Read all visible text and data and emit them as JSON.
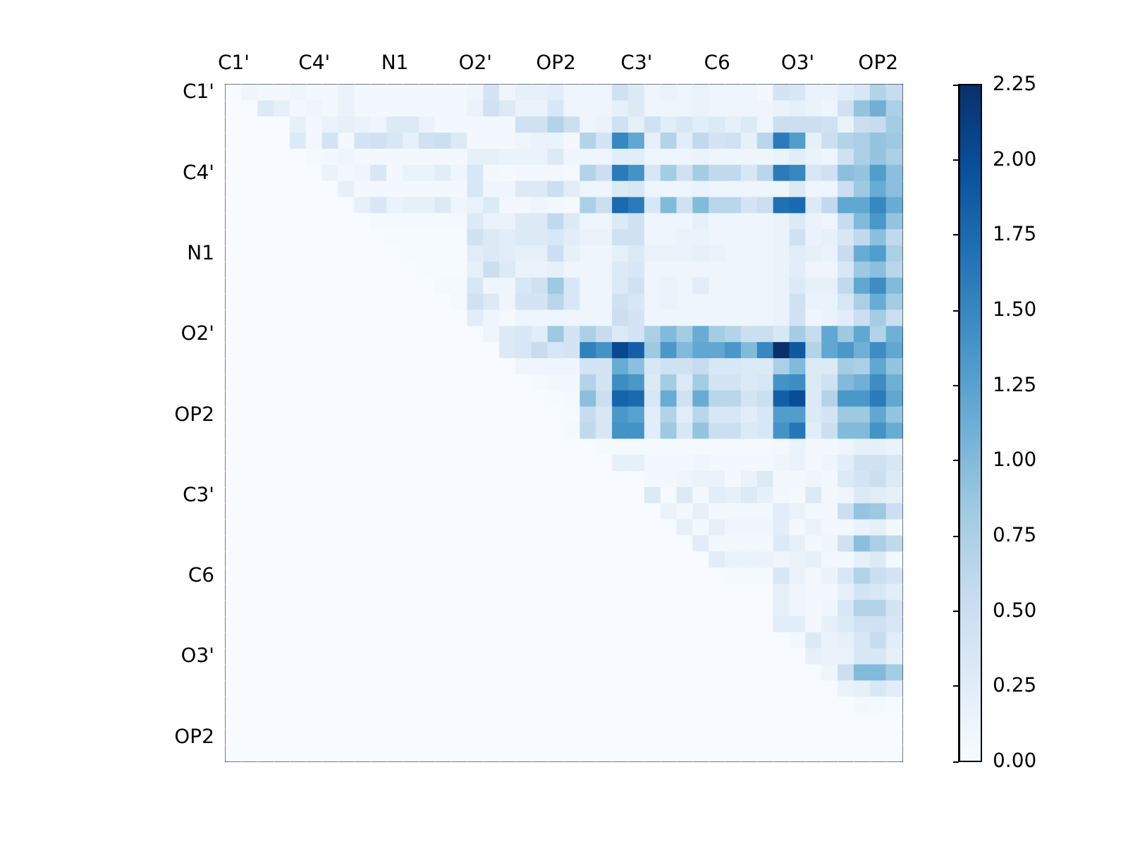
{
  "chart_data": {
    "type": "heatmap",
    "categories": [
      "C1'",
      null,
      null,
      null,
      null,
      "C4'",
      null,
      null,
      null,
      null,
      "N1",
      null,
      null,
      null,
      null,
      "O2'",
      null,
      null,
      null,
      null,
      "OP2",
      null,
      null,
      null,
      null,
      "C3'",
      null,
      null,
      null,
      null,
      "C6",
      null,
      null,
      null,
      null,
      "O3'",
      null,
      null,
      null,
      null,
      "OP2",
      null
    ],
    "y_categories": [
      "C1'",
      null,
      null,
      null,
      null,
      "C4'",
      null,
      null,
      null,
      null,
      "N1",
      null,
      null,
      null,
      null,
      "O2'",
      null,
      null,
      null,
      null,
      "OP2",
      null,
      null,
      null,
      null,
      "C3'",
      null,
      null,
      null,
      null,
      "C6",
      null,
      null,
      null,
      null,
      "O3'",
      null,
      null,
      null,
      null,
      "OP2",
      null
    ],
    "cells": [
      [
        0,
        0.1,
        0.05,
        0.05,
        0.1,
        0.05,
        0.05,
        0.15,
        0.05,
        0.05,
        0.05,
        0.05,
        0.05,
        0.05,
        0.05,
        0.1,
        0.4,
        0.1,
        0.2,
        0.2,
        0.25,
        0.1,
        0.1,
        0.1,
        0.45,
        0.3,
        0.1,
        0.15,
        0.1,
        0.15,
        0.1,
        0.1,
        0.1,
        0.05,
        0.4,
        0.35,
        0.15,
        0.15,
        0.25,
        0.35,
        0.7,
        0.55
      ],
      [
        0,
        0,
        0.3,
        0.2,
        0.05,
        0.1,
        0.05,
        0.15,
        0.05,
        0.05,
        0.05,
        0.05,
        0.05,
        0.05,
        0.05,
        0.15,
        0.45,
        0.3,
        0.15,
        0.15,
        0.35,
        0.1,
        0.1,
        0.1,
        0.2,
        0.3,
        0.1,
        0.1,
        0.1,
        0.15,
        0.1,
        0.1,
        0.1,
        0.1,
        0.15,
        0.2,
        0.15,
        0.1,
        0.45,
        0.9,
        1.1,
        0.75
      ],
      [
        0,
        0,
        0,
        0,
        0.2,
        0.05,
        0.15,
        0.2,
        0.15,
        0.1,
        0.3,
        0.3,
        0.15,
        0.05,
        0.05,
        0.05,
        0.05,
        0.05,
        0.45,
        0.45,
        0.7,
        0.5,
        0.1,
        0.15,
        0.45,
        0.2,
        0.45,
        0.25,
        0.35,
        0.25,
        0.3,
        0.2,
        0.3,
        0.1,
        0.5,
        0.5,
        0.5,
        0.45,
        0.15,
        0.5,
        0.55,
        0.8
      ],
      [
        0,
        0,
        0,
        0,
        0.3,
        0.05,
        0.4,
        0.05,
        0.4,
        0.45,
        0.35,
        0.2,
        0.45,
        0.5,
        0.3,
        0.05,
        0.05,
        0.05,
        0.1,
        0.15,
        0.15,
        0.05,
        0.7,
        0.4,
        1.5,
        1.2,
        0.2,
        0.7,
        0.25,
        0.6,
        0.4,
        0.45,
        0.2,
        0.65,
        1.6,
        1.3,
        0.2,
        0.5,
        0.7,
        0.75,
        0.9,
        0.85
      ],
      [
        0,
        0,
        0,
        0,
        0,
        0.03,
        0.05,
        0.1,
        0.05,
        0.05,
        0.05,
        0.05,
        0.05,
        0.05,
        0.05,
        0.2,
        0.2,
        0.15,
        0.15,
        0.15,
        0.3,
        0.1,
        0.1,
        0.1,
        0.25,
        0.25,
        0.1,
        0.1,
        0.1,
        0.15,
        0.1,
        0.1,
        0.1,
        0.1,
        0.15,
        0.25,
        0.15,
        0.1,
        0.45,
        0.75,
        0.9,
        0.75
      ],
      [
        0,
        0,
        0,
        0,
        0,
        0,
        0.15,
        0.05,
        0.1,
        0.35,
        0.05,
        0.15,
        0.15,
        0.25,
        0.1,
        0.35,
        0.05,
        0.03,
        0.05,
        0.05,
        0.05,
        0.03,
        0.7,
        0.5,
        1.6,
        1.4,
        0.35,
        0.8,
        0.45,
        0.8,
        0.6,
        0.6,
        0.35,
        0.65,
        1.6,
        1.5,
        0.35,
        0.45,
        0.95,
        0.9,
        1.3,
        0.95
      ],
      [
        0,
        0,
        0,
        0,
        0,
        0,
        0,
        0.2,
        0.05,
        0.05,
        0.05,
        0.05,
        0.05,
        0.05,
        0.05,
        0.35,
        0.1,
        0.1,
        0.3,
        0.3,
        0.5,
        0.25,
        0.1,
        0.1,
        0.3,
        0.35,
        0.1,
        0.1,
        0.1,
        0.15,
        0.1,
        0.1,
        0.1,
        0.1,
        0.1,
        0.3,
        0.1,
        0.1,
        0.5,
        0.85,
        1.15,
        0.95
      ],
      [
        0,
        0,
        0,
        0,
        0,
        0,
        0,
        0,
        0.2,
        0.35,
        0.15,
        0.2,
        0.2,
        0.3,
        0.1,
        0.15,
        0.3,
        0.05,
        0.05,
        0.1,
        0.05,
        0.03,
        0.75,
        0.5,
        1.75,
        1.6,
        0.35,
        1,
        0.45,
        1,
        0.65,
        0.65,
        0.4,
        0.5,
        1.7,
        1.75,
        0.3,
        0.6,
        1.2,
        1.2,
        1.5,
        1.15
      ],
      [
        0,
        0,
        0,
        0,
        0,
        0,
        0,
        0,
        0,
        0.03,
        0.03,
        0.03,
        0.03,
        0.03,
        0.03,
        0.3,
        0.15,
        0.15,
        0.3,
        0.3,
        0.6,
        0.3,
        0.1,
        0.1,
        0.3,
        0.45,
        0.1,
        0.1,
        0.1,
        0.2,
        0.1,
        0.1,
        0.1,
        0.1,
        0.15,
        0.3,
        0.15,
        0.1,
        0.55,
        1,
        1.35,
        0.9
      ],
      [
        0,
        0,
        0,
        0,
        0,
        0,
        0,
        0,
        0,
        0,
        0.02,
        0.02,
        0.02,
        0.02,
        0.02,
        0.45,
        0.3,
        0.25,
        0.3,
        0.3,
        0.35,
        0.25,
        0.15,
        0.15,
        0.45,
        0.45,
        0.1,
        0.1,
        0.15,
        0.15,
        0.1,
        0.1,
        0.1,
        0.1,
        0.15,
        0.45,
        0.15,
        0.2,
        0.35,
        0.6,
        0.95,
        0.6
      ],
      [
        0,
        0,
        0,
        0,
        0,
        0,
        0,
        0,
        0,
        0,
        0,
        0.02,
        0.02,
        0.02,
        0.02,
        0.25,
        0.3,
        0.25,
        0.2,
        0.2,
        0.5,
        0.2,
        0.1,
        0.1,
        0.2,
        0.3,
        0.15,
        0.15,
        0.15,
        0.2,
        0.15,
        0.1,
        0.1,
        0.1,
        0.15,
        0.25,
        0.2,
        0.15,
        0.55,
        1.15,
        1.3,
        0.75
      ],
      [
        0,
        0,
        0,
        0,
        0,
        0,
        0,
        0,
        0,
        0,
        0,
        0,
        0.02,
        0.02,
        0.02,
        0.2,
        0.5,
        0.3,
        0.15,
        0.15,
        0.2,
        0.1,
        0.1,
        0.1,
        0.3,
        0.35,
        0.1,
        0.1,
        0.1,
        0.1,
        0.1,
        0.1,
        0.1,
        0.1,
        0.15,
        0.25,
        0.1,
        0.1,
        0.35,
        0.85,
        0.95,
        0.65
      ],
      [
        0,
        0,
        0,
        0,
        0,
        0,
        0,
        0,
        0,
        0,
        0,
        0,
        0,
        0.03,
        0.03,
        0.35,
        0.1,
        0.1,
        0.35,
        0.45,
        0.85,
        0.35,
        0.1,
        0.1,
        0.3,
        0.45,
        0.1,
        0.15,
        0.1,
        0.25,
        0.1,
        0.1,
        0.1,
        0.1,
        0.15,
        0.3,
        0.2,
        0.2,
        0.6,
        1.2,
        1.45,
        1
      ],
      [
        0,
        0,
        0,
        0,
        0,
        0,
        0,
        0,
        0,
        0,
        0,
        0,
        0,
        0,
        0.03,
        0.45,
        0.3,
        0.1,
        0.4,
        0.4,
        0.65,
        0.35,
        0.1,
        0.1,
        0.45,
        0.35,
        0.1,
        0.15,
        0.1,
        0.1,
        0.1,
        0.1,
        0.1,
        0.1,
        0.15,
        0.45,
        0.15,
        0.15,
        0.35,
        0.75,
        1.15,
        0.8
      ],
      [
        0,
        0,
        0,
        0,
        0,
        0,
        0,
        0,
        0,
        0,
        0,
        0,
        0,
        0,
        0,
        0.25,
        0.1,
        0.03,
        0.1,
        0.1,
        0.1,
        0.1,
        0.1,
        0.1,
        0.5,
        0.4,
        0.1,
        0.1,
        0.1,
        0.1,
        0.1,
        0.1,
        0.1,
        0.1,
        0.15,
        0.45,
        0.1,
        0.15,
        0.25,
        0.5,
        0.8,
        0.5
      ],
      [
        0,
        0,
        0,
        0,
        0,
        0,
        0,
        0,
        0,
        0,
        0,
        0,
        0,
        0,
        0,
        0,
        0.1,
        0.3,
        0.35,
        0.25,
        0.85,
        0.4,
        0.75,
        0.55,
        0.3,
        0.4,
        0.75,
        1,
        0.8,
        1.15,
        0.8,
        0.7,
        0.5,
        0.5,
        0.35,
        0.8,
        0.55,
        1.2,
        0.85,
        1.2,
        0.7,
        1.1
      ],
      [
        0,
        0,
        0,
        0,
        0,
        0,
        0,
        0,
        0,
        0,
        0,
        0,
        0,
        0,
        0,
        0,
        0,
        0.3,
        0.35,
        0.55,
        0.35,
        0.4,
        1.55,
        1.4,
        2.05,
        1.85,
        0.85,
        1.35,
        1,
        1.2,
        1.2,
        1.35,
        1,
        1.5,
        2.25,
        1.9,
        0.7,
        1.2,
        1.35,
        1.1,
        1.45,
        1.2
      ],
      [
        0,
        0,
        0,
        0,
        0,
        0,
        0,
        0,
        0,
        0,
        0,
        0,
        0,
        0,
        0,
        0,
        0,
        0,
        0.1,
        0.1,
        0.1,
        0.1,
        0.4,
        0.4,
        1.15,
        0.95,
        0.35,
        0.45,
        0.45,
        0.55,
        0.35,
        0.35,
        0.3,
        0.3,
        0.75,
        1,
        0.3,
        0.3,
        0.8,
        0.75,
        1.2,
        0.9
      ],
      [
        0,
        0,
        0,
        0,
        0,
        0,
        0,
        0,
        0,
        0,
        0,
        0,
        0,
        0,
        0,
        0,
        0,
        0,
        0,
        0.03,
        0.05,
        0.05,
        0.7,
        0.4,
        1.45,
        1.35,
        0.3,
        0.8,
        0.3,
        0.8,
        0.4,
        0.4,
        0.3,
        0.35,
        1.4,
        1.45,
        0.3,
        0.45,
        1,
        1.1,
        1.45,
        1.1
      ],
      [
        0,
        0,
        0,
        0,
        0,
        0,
        0,
        0,
        0,
        0,
        0,
        0,
        0,
        0,
        0,
        0,
        0,
        0,
        0,
        0,
        0.02,
        0.03,
        0.95,
        0.5,
        1.8,
        1.75,
        0.35,
        1.15,
        0.45,
        1.15,
        0.65,
        0.65,
        0.4,
        0.5,
        1.85,
        2,
        0.3,
        0.7,
        1.35,
        1.35,
        1.6,
        1.2
      ],
      [
        0,
        0,
        0,
        0,
        0,
        0,
        0,
        0,
        0,
        0,
        0,
        0,
        0,
        0,
        0,
        0,
        0,
        0,
        0,
        0,
        0,
        0.02,
        0.55,
        0.35,
        1.35,
        1.25,
        0.25,
        0.7,
        0.25,
        0.65,
        0.35,
        0.35,
        0.25,
        0.35,
        1.3,
        1.3,
        0.3,
        0.4,
        0.85,
        0.85,
        1.2,
        0.9
      ],
      [
        0,
        0,
        0,
        0,
        0,
        0,
        0,
        0,
        0,
        0,
        0,
        0,
        0,
        0,
        0,
        0,
        0,
        0,
        0,
        0,
        0,
        0.03,
        0.6,
        0.35,
        1.4,
        1.4,
        0.25,
        0.85,
        0.35,
        0.9,
        0.5,
        0.5,
        0.3,
        0.35,
        1.4,
        1.65,
        0.25,
        0.5,
        1,
        1,
        1.4,
        1.15
      ],
      [
        0,
        0,
        0,
        0,
        0,
        0,
        0,
        0,
        0,
        0,
        0,
        0,
        0,
        0,
        0,
        0,
        0,
        0,
        0,
        0,
        0,
        0,
        0,
        0.03,
        0.03,
        0.03,
        0.03,
        0.03,
        0.03,
        0.03,
        0.03,
        0.03,
        0.03,
        0.03,
        0.05,
        0.15,
        0.05,
        0.05,
        0.1,
        0.2,
        0.2,
        0.15
      ],
      [
        0,
        0,
        0,
        0,
        0,
        0,
        0,
        0,
        0,
        0,
        0,
        0,
        0,
        0,
        0,
        0,
        0,
        0,
        0,
        0,
        0,
        0,
        0,
        0,
        0.2,
        0.2,
        0.05,
        0.05,
        0.05,
        0.1,
        0.05,
        0.05,
        0.05,
        0.05,
        0.1,
        0.15,
        0.05,
        0.1,
        0.25,
        0.45,
        0.45,
        0.35
      ],
      [
        0,
        0,
        0,
        0,
        0,
        0,
        0,
        0,
        0,
        0,
        0,
        0,
        0,
        0,
        0,
        0,
        0,
        0,
        0,
        0,
        0,
        0,
        0,
        0,
        0,
        0,
        0.05,
        0.05,
        0.1,
        0.15,
        0.15,
        0.05,
        0.15,
        0.3,
        0.05,
        0.05,
        0.1,
        0.05,
        0.3,
        0.4,
        0.5,
        0.3
      ],
      [
        0,
        0,
        0,
        0,
        0,
        0,
        0,
        0,
        0,
        0,
        0,
        0,
        0,
        0,
        0,
        0,
        0,
        0,
        0,
        0,
        0,
        0,
        0,
        0,
        0,
        0,
        0.3,
        0.02,
        0.3,
        0.05,
        0.25,
        0.2,
        0.3,
        0.2,
        0.05,
        0.03,
        0.3,
        0.05,
        0.1,
        0.3,
        0.25,
        0.2
      ],
      [
        0,
        0,
        0,
        0,
        0,
        0,
        0,
        0,
        0,
        0,
        0,
        0,
        0,
        0,
        0,
        0,
        0,
        0,
        0,
        0,
        0,
        0,
        0,
        0,
        0,
        0,
        0,
        0.15,
        0.05,
        0.2,
        0.05,
        0.05,
        0.05,
        0.05,
        0.25,
        0.15,
        0.05,
        0.05,
        0.5,
        0.9,
        0.85,
        0.5
      ],
      [
        0,
        0,
        0,
        0,
        0,
        0,
        0,
        0,
        0,
        0,
        0,
        0,
        0,
        0,
        0,
        0,
        0,
        0,
        0,
        0,
        0,
        0,
        0,
        0,
        0,
        0,
        0,
        0,
        0.2,
        0.05,
        0.2,
        0.1,
        0.1,
        0.1,
        0.25,
        0.05,
        0.15,
        0.05,
        0.05,
        0.15,
        0.2,
        0.05
      ],
      [
        0,
        0,
        0,
        0,
        0,
        0,
        0,
        0,
        0,
        0,
        0,
        0,
        0,
        0,
        0,
        0,
        0,
        0,
        0,
        0,
        0,
        0,
        0,
        0,
        0,
        0,
        0,
        0,
        0,
        0.25,
        0.05,
        0.05,
        0.05,
        0.05,
        0.3,
        0.2,
        0.05,
        0.1,
        0.45,
        0.95,
        0.75,
        0.6
      ],
      [
        0,
        0,
        0,
        0,
        0,
        0,
        0,
        0,
        0,
        0,
        0,
        0,
        0,
        0,
        0,
        0,
        0,
        0,
        0,
        0,
        0,
        0,
        0,
        0,
        0,
        0,
        0,
        0,
        0,
        0,
        0.25,
        0.15,
        0.15,
        0.15,
        0.1,
        0.15,
        0.2,
        0.05,
        0.05,
        0.2,
        0.3,
        0.05
      ],
      [
        0,
        0,
        0,
        0,
        0,
        0,
        0,
        0,
        0,
        0,
        0,
        0,
        0,
        0,
        0,
        0,
        0,
        0,
        0,
        0,
        0,
        0,
        0,
        0,
        0,
        0,
        0,
        0,
        0,
        0,
        0,
        0.03,
        0.03,
        0.03,
        0.35,
        0.15,
        0.05,
        0.15,
        0.35,
        0.7,
        0.5,
        0.4
      ],
      [
        0,
        0,
        0,
        0,
        0,
        0,
        0,
        0,
        0,
        0,
        0,
        0,
        0,
        0,
        0,
        0,
        0,
        0,
        0,
        0,
        0,
        0,
        0,
        0,
        0,
        0,
        0,
        0,
        0,
        0,
        0,
        0,
        0,
        0,
        0.2,
        0.1,
        0.05,
        0.05,
        0.2,
        0.4,
        0.35,
        0.25
      ],
      [
        0,
        0,
        0,
        0,
        0,
        0,
        0,
        0,
        0,
        0,
        0,
        0,
        0,
        0,
        0,
        0,
        0,
        0,
        0,
        0,
        0,
        0,
        0,
        0,
        0,
        0,
        0,
        0,
        0,
        0,
        0,
        0,
        0,
        0,
        0.2,
        0.1,
        0.05,
        0.1,
        0.35,
        0.7,
        0.7,
        0.4
      ],
      [
        0,
        0,
        0,
        0,
        0,
        0,
        0,
        0,
        0,
        0,
        0,
        0,
        0,
        0,
        0,
        0,
        0,
        0,
        0,
        0,
        0,
        0,
        0,
        0,
        0,
        0,
        0,
        0,
        0,
        0,
        0,
        0,
        0,
        0,
        0.25,
        0.25,
        0.05,
        0.2,
        0.3,
        0.45,
        0.45,
        0.35
      ],
      [
        0,
        0,
        0,
        0,
        0,
        0,
        0,
        0,
        0,
        0,
        0,
        0,
        0,
        0,
        0,
        0,
        0,
        0,
        0,
        0,
        0,
        0,
        0,
        0,
        0,
        0,
        0,
        0,
        0,
        0,
        0,
        0,
        0,
        0,
        0,
        0.05,
        0.3,
        0.15,
        0.2,
        0.35,
        0.55,
        0.25
      ],
      [
        0,
        0,
        0,
        0,
        0,
        0,
        0,
        0,
        0,
        0,
        0,
        0,
        0,
        0,
        0,
        0,
        0,
        0,
        0,
        0,
        0,
        0,
        0,
        0,
        0,
        0,
        0,
        0,
        0,
        0,
        0,
        0,
        0,
        0,
        0,
        0,
        0.2,
        0.15,
        0.15,
        0.35,
        0.35,
        0.2
      ],
      [
        0,
        0,
        0,
        0,
        0,
        0,
        0,
        0,
        0,
        0,
        0,
        0,
        0,
        0,
        0,
        0,
        0,
        0,
        0,
        0,
        0,
        0,
        0,
        0,
        0,
        0,
        0,
        0,
        0,
        0,
        0,
        0,
        0,
        0,
        0,
        0,
        0,
        0.1,
        0.5,
        1,
        1,
        0.8
      ],
      [
        0,
        0,
        0,
        0,
        0,
        0,
        0,
        0,
        0,
        0,
        0,
        0,
        0,
        0,
        0,
        0,
        0,
        0,
        0,
        0,
        0,
        0,
        0,
        0,
        0,
        0,
        0,
        0,
        0,
        0,
        0,
        0,
        0,
        0,
        0,
        0,
        0,
        0,
        0.15,
        0.2,
        0.35,
        0.25
      ],
      [
        0,
        0,
        0,
        0,
        0,
        0,
        0,
        0,
        0,
        0,
        0,
        0,
        0,
        0,
        0,
        0,
        0,
        0,
        0,
        0,
        0,
        0,
        0,
        0,
        0,
        0,
        0,
        0,
        0,
        0,
        0,
        0,
        0,
        0,
        0,
        0,
        0,
        0,
        0,
        0.05,
        0.03,
        0.02
      ],
      [
        0,
        0,
        0,
        0,
        0,
        0,
        0,
        0,
        0,
        0,
        0,
        0,
        0,
        0,
        0,
        0,
        0,
        0,
        0,
        0,
        0,
        0,
        0,
        0,
        0,
        0,
        0,
        0,
        0,
        0,
        0,
        0,
        0,
        0,
        0,
        0,
        0,
        0,
        0,
        0,
        0,
        0
      ],
      [
        0,
        0,
        0,
        0,
        0,
        0,
        0,
        0,
        0,
        0,
        0,
        0,
        0,
        0,
        0,
        0,
        0,
        0,
        0,
        0,
        0,
        0,
        0,
        0,
        0,
        0,
        0,
        0,
        0,
        0,
        0,
        0,
        0,
        0,
        0,
        0,
        0,
        0,
        0,
        0,
        0,
        0
      ],
      [
        0,
        0,
        0,
        0,
        0,
        0,
        0,
        0,
        0,
        0,
        0,
        0,
        0,
        0,
        0,
        0,
        0,
        0,
        0,
        0,
        0,
        0,
        0,
        0,
        0,
        0,
        0,
        0,
        0,
        0,
        0,
        0,
        0,
        0,
        0,
        0,
        0,
        0,
        0,
        0,
        0,
        0
      ]
    ],
    "clim": [
      0,
      2.25
    ],
    "cticks": [
      {
        "value": 0,
        "label": "0.00"
      },
      {
        "value": 0.25,
        "label": "0.25"
      },
      {
        "value": 0.5,
        "label": "0.50"
      },
      {
        "value": 0.75,
        "label": "0.75"
      },
      {
        "value": 1,
        "label": "1.00"
      },
      {
        "value": 1.25,
        "label": "1.25"
      },
      {
        "value": 1.5,
        "label": "1.50"
      },
      {
        "value": 1.75,
        "label": "1.75"
      },
      {
        "value": 2,
        "label": "2.00"
      },
      {
        "value": 2.25,
        "label": "2.25"
      }
    ]
  }
}
